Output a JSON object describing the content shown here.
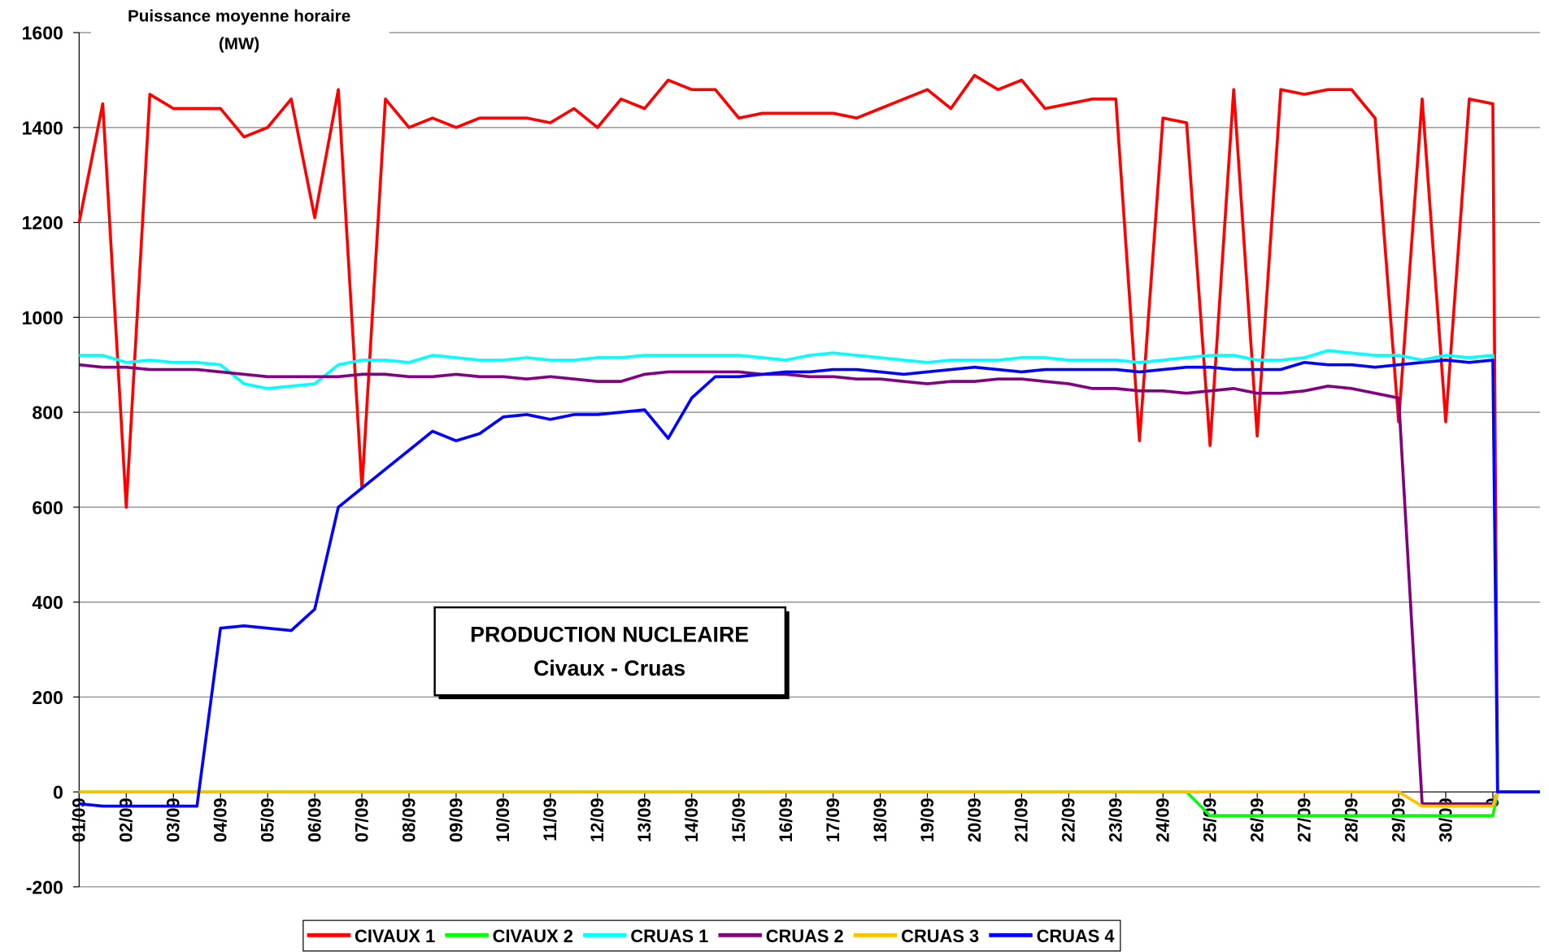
{
  "chart_data": {
    "type": "line",
    "title": "PRODUCTION NUCLEAIRE",
    "subtitle": "Civaux - Cruas",
    "ylabel": "Puissance moyenne horaire",
    "yunit": "(MW)",
    "x": [
      0,
      0.5,
      1,
      1.5,
      2,
      2.5,
      3,
      3.5,
      4,
      4.5,
      5,
      5.5,
      6,
      6.5,
      7,
      7.5,
      8,
      8.5,
      9,
      9.5,
      10,
      10.5,
      11,
      11.5,
      12,
      12.5,
      13,
      13.5,
      14,
      14.5,
      15,
      15.5,
      16,
      16.5,
      17,
      17.5,
      18,
      18.5,
      19,
      19.5,
      20,
      20.5,
      21,
      21.5,
      22,
      22.5,
      23,
      23.5,
      24,
      24.5,
      25,
      25.5,
      26,
      26.5,
      27,
      27.5,
      28,
      28.5,
      29,
      29.5,
      30,
      30.1,
      31
    ],
    "series": [
      {
        "name": "CIVAUX 1",
        "color": "#ff0000",
        "values": [
          1200,
          1450,
          600,
          1470,
          1440,
          1440,
          1440,
          1380,
          1400,
          1460,
          1210,
          1480,
          640,
          1460,
          1400,
          1420,
          1400,
          1420,
          1420,
          1420,
          1410,
          1440,
          1400,
          1460,
          1440,
          1500,
          1480,
          1480,
          1420,
          1430,
          1430,
          1430,
          1430,
          1420,
          1440,
          1460,
          1480,
          1440,
          1510,
          1480,
          1500,
          1440,
          1450,
          1460,
          1460,
          740,
          1420,
          1410,
          730,
          1480,
          750,
          1480,
          1470,
          1480,
          1480,
          1420,
          780,
          1460,
          780,
          1460,
          1450,
          0,
          0
        ]
      },
      {
        "name": "CIVAUX 2",
        "color": "#00ff00",
        "values": [
          0,
          0,
          0,
          0,
          0,
          0,
          0,
          0,
          0,
          0,
          0,
          0,
          0,
          0,
          0,
          0,
          0,
          0,
          0,
          0,
          0,
          0,
          0,
          0,
          0,
          0,
          0,
          0,
          0,
          0,
          0,
          0,
          0,
          0,
          0,
          0,
          0,
          0,
          0,
          0,
          0,
          0,
          0,
          0,
          0,
          0,
          0,
          0,
          -50,
          -50,
          -50,
          -50,
          -50,
          -50,
          -50,
          -50,
          -50,
          -50,
          -50,
          -50,
          -50,
          0,
          0
        ]
      },
      {
        "name": "CRUAS 1",
        "color": "#00ffff",
        "values": [
          920,
          920,
          905,
          910,
          905,
          905,
          900,
          860,
          850,
          855,
          860,
          900,
          910,
          910,
          905,
          920,
          915,
          910,
          910,
          915,
          910,
          910,
          915,
          915,
          920,
          920,
          920,
          920,
          920,
          915,
          910,
          920,
          925,
          920,
          915,
          910,
          905,
          910,
          910,
          910,
          915,
          915,
          910,
          910,
          910,
          905,
          910,
          915,
          920,
          920,
          910,
          910,
          915,
          930,
          925,
          920,
          920,
          910,
          920,
          915,
          920,
          0,
          0
        ]
      },
      {
        "name": "CRUAS 2",
        "color": "#800080",
        "values": [
          900,
          895,
          895,
          890,
          890,
          890,
          885,
          880,
          875,
          875,
          875,
          875,
          880,
          880,
          875,
          875,
          880,
          875,
          875,
          870,
          875,
          870,
          865,
          865,
          880,
          885,
          885,
          885,
          885,
          880,
          880,
          875,
          875,
          870,
          870,
          865,
          860,
          865,
          865,
          870,
          870,
          865,
          860,
          850,
          850,
          845,
          845,
          840,
          845,
          850,
          840,
          840,
          845,
          855,
          850,
          840,
          830,
          -25,
          -25,
          -25,
          -25,
          0,
          0
        ]
      },
      {
        "name": "CRUAS 3",
        "color": "#ffc000",
        "values": [
          0,
          0,
          0,
          0,
          0,
          0,
          0,
          0,
          0,
          0,
          0,
          0,
          0,
          0,
          0,
          0,
          0,
          0,
          0,
          0,
          0,
          0,
          0,
          0,
          0,
          0,
          0,
          0,
          0,
          0,
          0,
          0,
          0,
          0,
          0,
          0,
          0,
          0,
          0,
          0,
          0,
          0,
          0,
          0,
          0,
          0,
          0,
          0,
          0,
          0,
          0,
          0,
          0,
          0,
          0,
          0,
          0,
          -30,
          -30,
          -30,
          -30,
          0,
          0
        ]
      },
      {
        "name": "CRUAS 4",
        "color": "#0000ff",
        "values": [
          -25,
          -30,
          -30,
          -30,
          -30,
          -30,
          345,
          350,
          345,
          340,
          385,
          600,
          640,
          680,
          720,
          760,
          740,
          755,
          790,
          795,
          785,
          795,
          795,
          800,
          805,
          745,
          830,
          875,
          875,
          880,
          885,
          885,
          890,
          890,
          885,
          880,
          885,
          890,
          895,
          890,
          885,
          890,
          890,
          890,
          890,
          885,
          890,
          895,
          895,
          890,
          890,
          890,
          905,
          900,
          900,
          895,
          900,
          905,
          910,
          905,
          910,
          0,
          0
        ]
      }
    ],
    "xlim": [
      0,
      31
    ],
    "xticks": [
      {
        "value": 0,
        "label": "01/09"
      },
      {
        "value": 1,
        "label": "02/09"
      },
      {
        "value": 2,
        "label": "03/09"
      },
      {
        "value": 3,
        "label": "04/09"
      },
      {
        "value": 4,
        "label": "05/09"
      },
      {
        "value": 5,
        "label": "06/09"
      },
      {
        "value": 6,
        "label": "07/09"
      },
      {
        "value": 7,
        "label": "08/09"
      },
      {
        "value": 8,
        "label": "09/09"
      },
      {
        "value": 9,
        "label": "10/09"
      },
      {
        "value": 10,
        "label": "11/09"
      },
      {
        "value": 11,
        "label": "12/09"
      },
      {
        "value": 12,
        "label": "13/09"
      },
      {
        "value": 13,
        "label": "14/09"
      },
      {
        "value": 14,
        "label": "15/09"
      },
      {
        "value": 15,
        "label": "16/09"
      },
      {
        "value": 16,
        "label": "17/09"
      },
      {
        "value": 17,
        "label": "18/09"
      },
      {
        "value": 18,
        "label": "19/09"
      },
      {
        "value": 19,
        "label": "20/09"
      },
      {
        "value": 20,
        "label": "21/09"
      },
      {
        "value": 21,
        "label": "22/09"
      },
      {
        "value": 22,
        "label": "23/09"
      },
      {
        "value": 23,
        "label": "24/09"
      },
      {
        "value": 24,
        "label": "25/09"
      },
      {
        "value": 25,
        "label": "26/09"
      },
      {
        "value": 26,
        "label": "27/09"
      },
      {
        "value": 27,
        "label": "28/09"
      },
      {
        "value": 28,
        "label": "29/09"
      },
      {
        "value": 29,
        "label": "30/09"
      },
      {
        "value": 30,
        "label": "0"
      }
    ],
    "ylim": [
      -200,
      1600
    ],
    "yticks": [
      -200,
      0,
      200,
      400,
      600,
      800,
      1000,
      1200,
      1400,
      1600
    ],
    "grid": true,
    "legend": "bottom"
  }
}
